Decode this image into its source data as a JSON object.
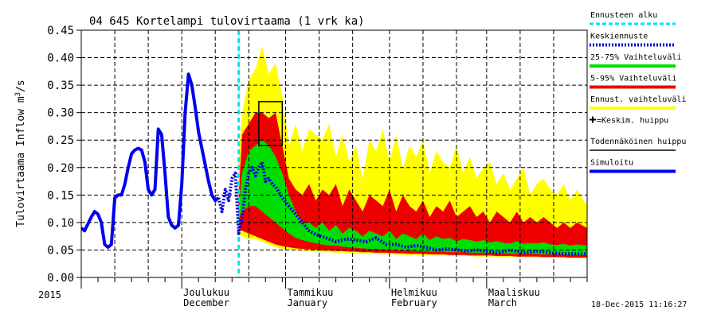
{
  "chart_data": {
    "type": "area",
    "title": "04 645 Kortelampi tulovirtaama (1 vrk ka)",
    "ylabel": "Tulovirtaama Inflow m³/s",
    "ylabel_parts": {
      "main": "Tulovirtaama Inflow m",
      "sup": "3",
      "tail": "/s"
    },
    "ylim": [
      0,
      0.45
    ],
    "yticks": [
      "0.00",
      "0.05",
      "0.10",
      "0.15",
      "0.20",
      "0.25",
      "0.30",
      "0.35",
      "0.40",
      "0.45"
    ],
    "x_start": "2015-11-01",
    "x_end": "2016-03-31",
    "grid": true,
    "forecast_start": "2015-12-18",
    "x_month_labels": [
      {
        "date": "2015-12-01",
        "fi": "Joulukuu",
        "en": "December"
      },
      {
        "date": "2016-01-01",
        "fi": "Tammikuu",
        "en": "January"
      },
      {
        "date": "2016-02-01",
        "fi": "Helmikuu",
        "en": "February"
      },
      {
        "date": "2016-03-01",
        "fi": "Maaliskuu",
        "en": "March"
      }
    ],
    "year_label": "2015",
    "timestamp": "18-Dec-2015 11:16:27",
    "legend_position": "right",
    "legend": [
      {
        "label": "Ennusteen alku",
        "color": "#00e5ee",
        "style": "dashed"
      },
      {
        "label": "Keskiennuste",
        "color": "#0000dd",
        "style": "dotted"
      },
      {
        "label": "25-75% Vaihteluväli",
        "color": "#00dd00",
        "style": "solid"
      },
      {
        "label": "5-95% Vaihteluväli",
        "color": "#ee0000",
        "style": "solid"
      },
      {
        "label": "Ennust. vaihteluväli",
        "color": "#ffff00",
        "style": "solid"
      },
      {
        "label": "=Keskim. huippu",
        "color": "#000000",
        "style": "marker"
      },
      {
        "label": "Todennäköinen huippu",
        "color": "#000000",
        "style": "solid"
      },
      {
        "label": "Simuloitu",
        "color": "#0000ee",
        "style": "solid"
      }
    ],
    "peak_box": {
      "x": [
        "2015-12-24",
        "2015-12-31"
      ],
      "y": [
        0.24,
        0.32
      ]
    },
    "series": [
      {
        "name": "Simuloitu",
        "points": [
          [
            "2015-11-01",
            0.09
          ],
          [
            "2015-11-02",
            0.085
          ],
          [
            "2015-11-04",
            0.11
          ],
          [
            "2015-11-05",
            0.12
          ],
          [
            "2015-11-06",
            0.115
          ],
          [
            "2015-11-07",
            0.1
          ],
          [
            "2015-11-08",
            0.06
          ],
          [
            "2015-11-09",
            0.055
          ],
          [
            "2015-11-10",
            0.06
          ],
          [
            "2015-11-11",
            0.145
          ],
          [
            "2015-11-12",
            0.15
          ],
          [
            "2015-11-13",
            0.15
          ],
          [
            "2015-11-14",
            0.17
          ],
          [
            "2015-11-15",
            0.2
          ],
          [
            "2015-11-16",
            0.225
          ],
          [
            "2015-11-17",
            0.232
          ],
          [
            "2015-11-18",
            0.235
          ],
          [
            "2015-11-19",
            0.232
          ],
          [
            "2015-11-20",
            0.21
          ],
          [
            "2015-11-21",
            0.16
          ],
          [
            "2015-11-22",
            0.15
          ],
          [
            "2015-11-23",
            0.16
          ],
          [
            "2015-11-24",
            0.27
          ],
          [
            "2015-11-25",
            0.26
          ],
          [
            "2015-11-26",
            0.19
          ],
          [
            "2015-11-27",
            0.11
          ],
          [
            "2015-11-28",
            0.095
          ],
          [
            "2015-11-29",
            0.09
          ],
          [
            "2015-11-30",
            0.095
          ],
          [
            "2015-12-01",
            0.17
          ],
          [
            "2015-12-02",
            0.3
          ],
          [
            "2015-12-03",
            0.37
          ],
          [
            "2015-12-04",
            0.35
          ],
          [
            "2015-12-05",
            0.31
          ],
          [
            "2015-12-06",
            0.265
          ],
          [
            "2015-12-07",
            0.235
          ],
          [
            "2015-12-08",
            0.205
          ],
          [
            "2015-12-09",
            0.175
          ],
          [
            "2015-12-10",
            0.15
          ],
          [
            "2015-12-11",
            0.14
          ],
          [
            "2015-12-12",
            0.145
          ]
        ]
      },
      {
        "name": "Keskiennuste",
        "points": [
          [
            "2015-12-12",
            0.145
          ],
          [
            "2015-12-13",
            0.12
          ],
          [
            "2015-12-14",
            0.16
          ],
          [
            "2015-12-15",
            0.14
          ],
          [
            "2015-12-16",
            0.18
          ],
          [
            "2015-12-17",
            0.19
          ],
          [
            "2015-12-18",
            0.08
          ],
          [
            "2015-12-19",
            0.11
          ],
          [
            "2015-12-20",
            0.16
          ],
          [
            "2015-12-21",
            0.19
          ],
          [
            "2015-12-22",
            0.2
          ],
          [
            "2015-12-23",
            0.185
          ],
          [
            "2015-12-24",
            0.2
          ],
          [
            "2015-12-25",
            0.21
          ],
          [
            "2015-12-26",
            0.175
          ],
          [
            "2015-12-27",
            0.18
          ],
          [
            "2015-12-28",
            0.17
          ],
          [
            "2015-12-29",
            0.165
          ],
          [
            "2015-12-30",
            0.155
          ],
          [
            "2015-12-31",
            0.145
          ],
          [
            "2016-01-02",
            0.13
          ],
          [
            "2016-01-04",
            0.115
          ],
          [
            "2016-01-06",
            0.1
          ],
          [
            "2016-01-08",
            0.085
          ],
          [
            "2016-01-10",
            0.078
          ],
          [
            "2016-01-13",
            0.072
          ],
          [
            "2016-01-16",
            0.065
          ],
          [
            "2016-01-19",
            0.07
          ],
          [
            "2016-01-22",
            0.068
          ],
          [
            "2016-01-25",
            0.065
          ],
          [
            "2016-01-28",
            0.072
          ],
          [
            "2016-01-31",
            0.06
          ],
          [
            "2016-02-03",
            0.06
          ],
          [
            "2016-02-06",
            0.055
          ],
          [
            "2016-02-09",
            0.058
          ],
          [
            "2016-02-12",
            0.055
          ],
          [
            "2016-02-15",
            0.05
          ],
          [
            "2016-02-18",
            0.052
          ],
          [
            "2016-02-21",
            0.05
          ],
          [
            "2016-02-24",
            0.048
          ],
          [
            "2016-02-27",
            0.05
          ],
          [
            "2016-03-01",
            0.048
          ],
          [
            "2016-03-04",
            0.045
          ],
          [
            "2016-03-08",
            0.05
          ],
          [
            "2016-03-12",
            0.045
          ],
          [
            "2016-03-16",
            0.048
          ],
          [
            "2016-03-20",
            0.045
          ],
          [
            "2016-03-24",
            0.043
          ],
          [
            "2016-03-28",
            0.043
          ],
          [
            "2016-03-31",
            0.043
          ]
        ]
      }
    ],
    "bands": [
      {
        "name": "Ennust. vaihteluväli",
        "color": "#ffff00",
        "dates": [
          "2015-12-18",
          "2015-12-19",
          "2015-12-21",
          "2015-12-23",
          "2015-12-25",
          "2015-12-27",
          "2015-12-29",
          "2015-12-31",
          "2016-01-02",
          "2016-01-04",
          "2016-01-06",
          "2016-01-08",
          "2016-01-10",
          "2016-01-12",
          "2016-01-14",
          "2016-01-16",
          "2016-01-18",
          "2016-01-20",
          "2016-01-22",
          "2016-01-24",
          "2016-01-26",
          "2016-01-28",
          "2016-01-30",
          "2016-02-01",
          "2016-02-03",
          "2016-02-05",
          "2016-02-07",
          "2016-02-09",
          "2016-02-11",
          "2016-02-13",
          "2016-02-15",
          "2016-02-17",
          "2016-02-19",
          "2016-02-21",
          "2016-02-23",
          "2016-02-25",
          "2016-02-27",
          "2016-02-29",
          "2016-03-02",
          "2016-03-04",
          "2016-03-06",
          "2016-03-08",
          "2016-03-10",
          "2016-03-12",
          "2016-03-14",
          "2016-03-16",
          "2016-03-18",
          "2016-03-20",
          "2016-03-22",
          "2016-03-24",
          "2016-03-26",
          "2016-03-28",
          "2016-03-31"
        ],
        "low": [
          0.08,
          0.075,
          0.07,
          0.07,
          0.065,
          0.06,
          0.055,
          0.052,
          0.05,
          0.05,
          0.048,
          0.048,
          0.047,
          0.046,
          0.046,
          0.045,
          0.045,
          0.044,
          0.044,
          0.043,
          0.043,
          0.043,
          0.042,
          0.042,
          0.042,
          0.041,
          0.041,
          0.041,
          0.04,
          0.04,
          0.04,
          0.04,
          0.039,
          0.039,
          0.039,
          0.039,
          0.038,
          0.038,
          0.038,
          0.038,
          0.037,
          0.037,
          0.037,
          0.037,
          0.036,
          0.036,
          0.036,
          0.036,
          0.036,
          0.035,
          0.035,
          0.035,
          0.035
        ],
        "high": [
          0.22,
          0.3,
          0.36,
          0.38,
          0.42,
          0.37,
          0.39,
          0.33,
          0.24,
          0.28,
          0.23,
          0.27,
          0.26,
          0.25,
          0.28,
          0.22,
          0.26,
          0.21,
          0.24,
          0.18,
          0.25,
          0.23,
          0.27,
          0.21,
          0.26,
          0.2,
          0.24,
          0.22,
          0.25,
          0.19,
          0.23,
          0.21,
          0.2,
          0.24,
          0.19,
          0.22,
          0.18,
          0.2,
          0.21,
          0.17,
          0.19,
          0.16,
          0.18,
          0.2,
          0.15,
          0.17,
          0.18,
          0.16,
          0.15,
          0.17,
          0.14,
          0.16,
          0.13
        ]
      },
      {
        "name": "5-95% Vaihteluväli",
        "color": "#ee0000",
        "dates": [
          "2015-12-18",
          "2015-12-19",
          "2015-12-21",
          "2015-12-23",
          "2015-12-25",
          "2015-12-27",
          "2015-12-29",
          "2015-12-31",
          "2016-01-02",
          "2016-01-04",
          "2016-01-06",
          "2016-01-08",
          "2016-01-10",
          "2016-01-12",
          "2016-01-14",
          "2016-01-16",
          "2016-01-18",
          "2016-01-20",
          "2016-01-22",
          "2016-01-24",
          "2016-01-26",
          "2016-01-28",
          "2016-01-30",
          "2016-02-01",
          "2016-02-03",
          "2016-02-05",
          "2016-02-07",
          "2016-02-09",
          "2016-02-11",
          "2016-02-13",
          "2016-02-15",
          "2016-02-17",
          "2016-02-19",
          "2016-02-21",
          "2016-02-23",
          "2016-02-25",
          "2016-02-27",
          "2016-02-29",
          "2016-03-02",
          "2016-03-04",
          "2016-03-06",
          "2016-03-08",
          "2016-03-10",
          "2016-03-12",
          "2016-03-14",
          "2016-03-16",
          "2016-03-18",
          "2016-03-20",
          "2016-03-22",
          "2016-03-24",
          "2016-03-26",
          "2016-03-28",
          "2016-03-31"
        ],
        "low": [
          0.09,
          0.085,
          0.08,
          0.075,
          0.07,
          0.065,
          0.06,
          0.057,
          0.055,
          0.053,
          0.052,
          0.051,
          0.05,
          0.049,
          0.049,
          0.048,
          0.048,
          0.047,
          0.047,
          0.046,
          0.046,
          0.045,
          0.045,
          0.045,
          0.044,
          0.044,
          0.043,
          0.043,
          0.043,
          0.042,
          0.042,
          0.042,
          0.041,
          0.041,
          0.041,
          0.04,
          0.04,
          0.04,
          0.04,
          0.039,
          0.039,
          0.039,
          0.038,
          0.038,
          0.038,
          0.038,
          0.037,
          0.037,
          0.037,
          0.037,
          0.036,
          0.036,
          0.036
        ],
        "high": [
          0.15,
          0.26,
          0.28,
          0.3,
          0.3,
          0.29,
          0.3,
          0.24,
          0.18,
          0.16,
          0.15,
          0.17,
          0.14,
          0.16,
          0.15,
          0.17,
          0.13,
          0.16,
          0.14,
          0.12,
          0.15,
          0.14,
          0.13,
          0.16,
          0.12,
          0.15,
          0.13,
          0.12,
          0.14,
          0.11,
          0.13,
          0.12,
          0.14,
          0.11,
          0.12,
          0.13,
          0.11,
          0.12,
          0.1,
          0.12,
          0.11,
          0.1,
          0.12,
          0.1,
          0.11,
          0.1,
          0.11,
          0.1,
          0.09,
          0.1,
          0.09,
          0.1,
          0.09
        ]
      },
      {
        "name": "25-75% Vaihteluväli",
        "color": "#00dd00",
        "dates": [
          "2015-12-18",
          "2015-12-19",
          "2015-12-21",
          "2015-12-23",
          "2015-12-25",
          "2015-12-27",
          "2015-12-29",
          "2015-12-31",
          "2016-01-02",
          "2016-01-04",
          "2016-01-06",
          "2016-01-08",
          "2016-01-10",
          "2016-01-12",
          "2016-01-14",
          "2016-01-16",
          "2016-01-18",
          "2016-01-20",
          "2016-01-22",
          "2016-01-24",
          "2016-01-26",
          "2016-01-28",
          "2016-01-30",
          "2016-02-01",
          "2016-02-03",
          "2016-02-05",
          "2016-02-07",
          "2016-02-09",
          "2016-02-11",
          "2016-02-13",
          "2016-02-15",
          "2016-02-17",
          "2016-02-19",
          "2016-02-21",
          "2016-02-23",
          "2016-02-25",
          "2016-02-27",
          "2016-02-29",
          "2016-03-02",
          "2016-03-04",
          "2016-03-06",
          "2016-03-08",
          "2016-03-10",
          "2016-03-12",
          "2016-03-14",
          "2016-03-16",
          "2016-03-18",
          "2016-03-20",
          "2016-03-22",
          "2016-03-24",
          "2016-03-26",
          "2016-03-28",
          "2016-03-31"
        ],
        "low": [
          0.11,
          0.12,
          0.13,
          0.13,
          0.12,
          0.11,
          0.1,
          0.09,
          0.08,
          0.072,
          0.068,
          0.065,
          0.062,
          0.06,
          0.058,
          0.058,
          0.056,
          0.055,
          0.054,
          0.053,
          0.052,
          0.052,
          0.051,
          0.05,
          0.05,
          0.049,
          0.049,
          0.048,
          0.048,
          0.047,
          0.047,
          0.047,
          0.046,
          0.046,
          0.046,
          0.045,
          0.045,
          0.045,
          0.045,
          0.044,
          0.044,
          0.044,
          0.043,
          0.043,
          0.043,
          0.043,
          0.042,
          0.042,
          0.042,
          0.042,
          0.041,
          0.041,
          0.041
        ],
        "high": [
          0.12,
          0.19,
          0.23,
          0.24,
          0.25,
          0.24,
          0.22,
          0.19,
          0.15,
          0.12,
          0.1,
          0.1,
          0.09,
          0.1,
          0.085,
          0.095,
          0.08,
          0.09,
          0.085,
          0.075,
          0.085,
          0.08,
          0.075,
          0.085,
          0.07,
          0.08,
          0.075,
          0.07,
          0.08,
          0.068,
          0.075,
          0.07,
          0.072,
          0.066,
          0.07,
          0.068,
          0.065,
          0.068,
          0.064,
          0.066,
          0.063,
          0.062,
          0.066,
          0.061,
          0.063,
          0.062,
          0.064,
          0.06,
          0.059,
          0.061,
          0.058,
          0.06,
          0.058
        ]
      }
    ]
  }
}
